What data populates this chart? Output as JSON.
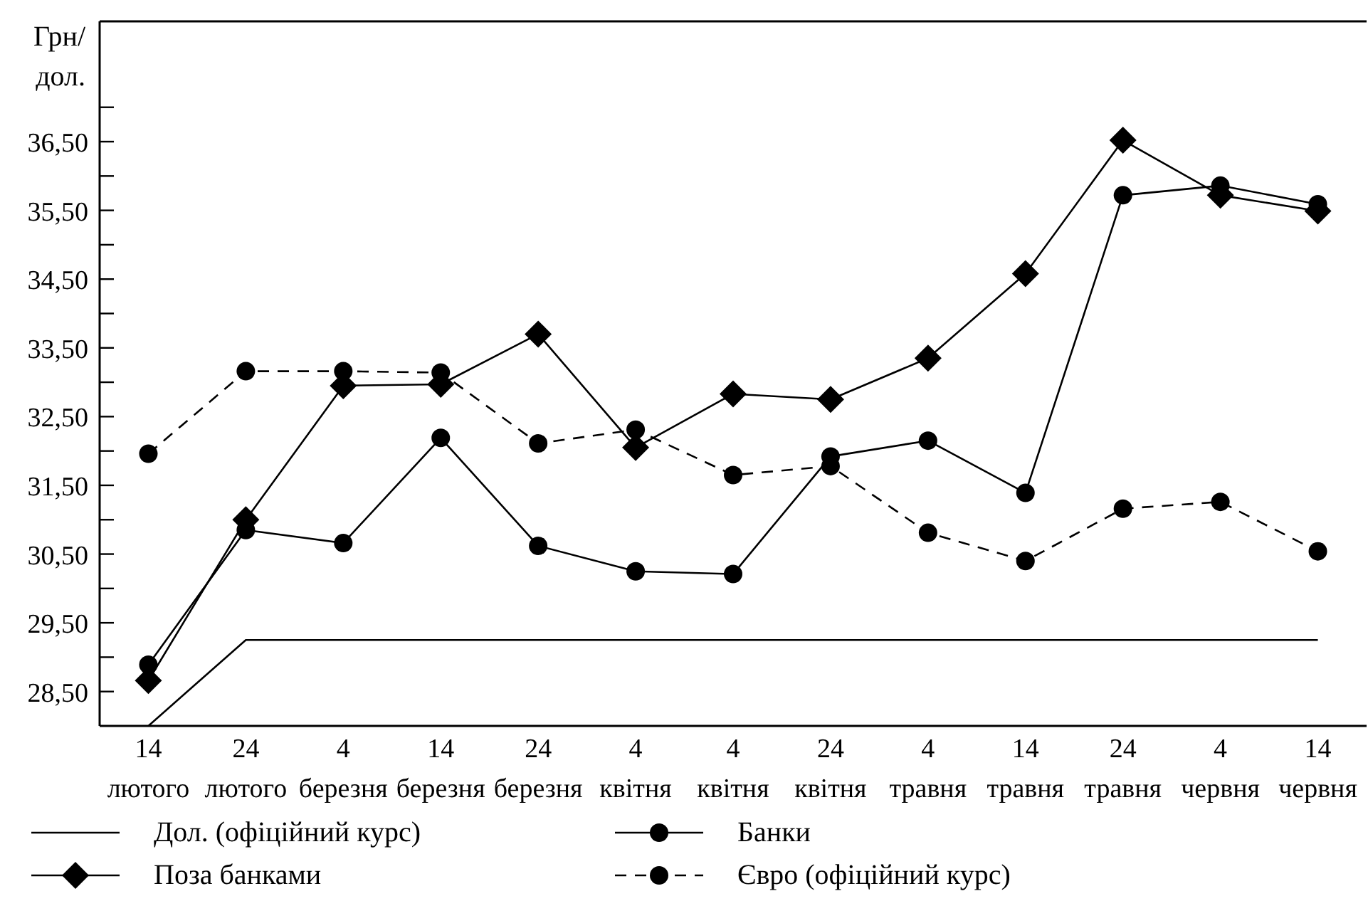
{
  "chart_data": {
    "type": "line",
    "ylabel": "Грн/ дол.",
    "categories": [
      "14 лютого",
      "24 лютого",
      "4 березня",
      "14 березня",
      "24 березня",
      "4 квітня",
      "4 квітня",
      "24 квітня",
      "4 травня",
      "14 травня",
      "24 травня",
      "4 червня",
      "14 червня"
    ],
    "series": [
      {
        "name": "Дол. (офіційний курс)",
        "color": "#000000",
        "marker": "none",
        "line_style": "solid",
        "values": [
          28.0,
          29.25,
          29.25,
          29.25,
          29.25,
          29.25,
          29.25,
          29.25,
          29.25,
          29.25,
          29.25,
          29.25,
          29.25
        ]
      },
      {
        "name": "Поза банками",
        "color": "#000000",
        "marker": "diamond",
        "line_style": "solid",
        "values": [
          28.66,
          31.0,
          32.95,
          32.97,
          33.7,
          32.05,
          32.83,
          32.75,
          33.35,
          34.58,
          36.52,
          35.72,
          35.49
        ]
      },
      {
        "name": "Банки",
        "color": "#000000",
        "marker": "circle",
        "line_style": "solid",
        "values": [
          28.89,
          30.85,
          30.66,
          32.19,
          30.62,
          30.25,
          30.21,
          31.92,
          32.15,
          31.39,
          35.72,
          35.86,
          35.59
        ]
      },
      {
        "name": "Євро (офіційний курс)",
        "color": "#000000",
        "marker": "circle",
        "line_style": "dashed",
        "values": [
          31.96,
          33.16,
          33.16,
          33.14,
          32.11,
          32.31,
          31.65,
          31.78,
          30.81,
          30.4,
          31.16,
          31.26,
          30.54
        ]
      }
    ],
    "ylim": [
      28.0,
      38.25
    ],
    "yticks": [
      {
        "value": 28.5,
        "label": "28,50"
      },
      {
        "value": 29,
        "label": null
      },
      {
        "value": 29.5,
        "label": "29,50"
      },
      {
        "value": 30,
        "label": null
      },
      {
        "value": 30.5,
        "label": "30,50"
      },
      {
        "value": 31,
        "label": null
      },
      {
        "value": 31.5,
        "label": "31,50"
      },
      {
        "value": 32,
        "label": null
      },
      {
        "value": 32.5,
        "label": "32,50"
      },
      {
        "value": 33,
        "label": null
      },
      {
        "value": 33.5,
        "label": "33,50"
      },
      {
        "value": 34,
        "label": null
      },
      {
        "value": 34.5,
        "label": "34,50"
      },
      {
        "value": 35,
        "label": null
      },
      {
        "value": 35.5,
        "label": "35,50"
      },
      {
        "value": 36,
        "label": null
      },
      {
        "value": 36.5,
        "label": "36,50"
      },
      {
        "value": 37,
        "label": null
      }
    ],
    "grid": false,
    "legend": "bottom"
  }
}
